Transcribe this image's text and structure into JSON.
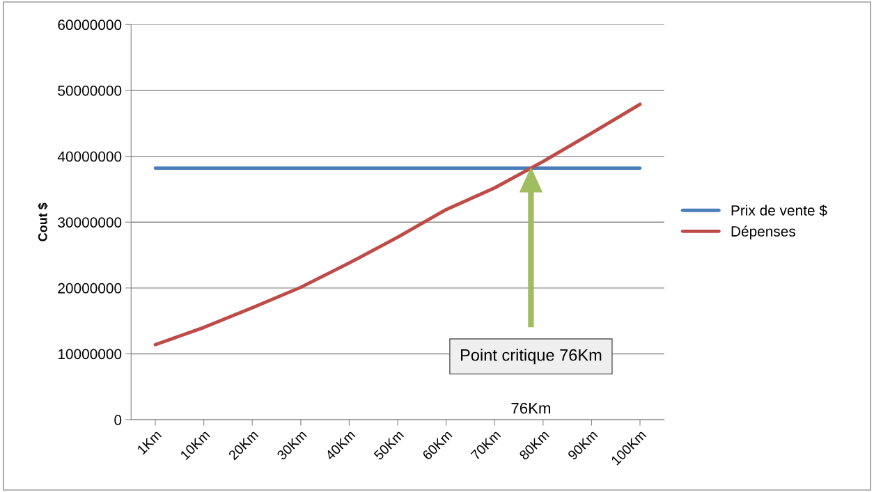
{
  "chart_data": {
    "type": "line",
    "ylabel": "Cout $",
    "categories": [
      "1Km",
      "10Km",
      "20Km",
      "30Km",
      "40Km",
      "50Km",
      "60Km",
      "70Km",
      "80Km",
      "90Km",
      "100Km"
    ],
    "series": [
      {
        "name": "Prix de vente $",
        "color": "#4a7ebb",
        "values": [
          38200000,
          38200000,
          38200000,
          38200000,
          38200000,
          38200000,
          38200000,
          38200000,
          38200000,
          38200000,
          38200000
        ]
      },
      {
        "name": "Dépenses",
        "color": "#be4b48",
        "values": [
          11400000,
          14000000,
          17000000,
          20100000,
          23800000,
          27700000,
          31900000,
          35200000,
          39200000,
          43500000,
          47900000
        ]
      }
    ],
    "ylim": [
      0,
      60000000
    ],
    "yticks": [
      0,
      10000000,
      20000000,
      30000000,
      40000000,
      50000000,
      60000000
    ],
    "grid": "y",
    "legend": "right",
    "marker": "none",
    "line_style": "solid",
    "annotations": [
      "Point critique 76Km",
      "76Km"
    ]
  }
}
